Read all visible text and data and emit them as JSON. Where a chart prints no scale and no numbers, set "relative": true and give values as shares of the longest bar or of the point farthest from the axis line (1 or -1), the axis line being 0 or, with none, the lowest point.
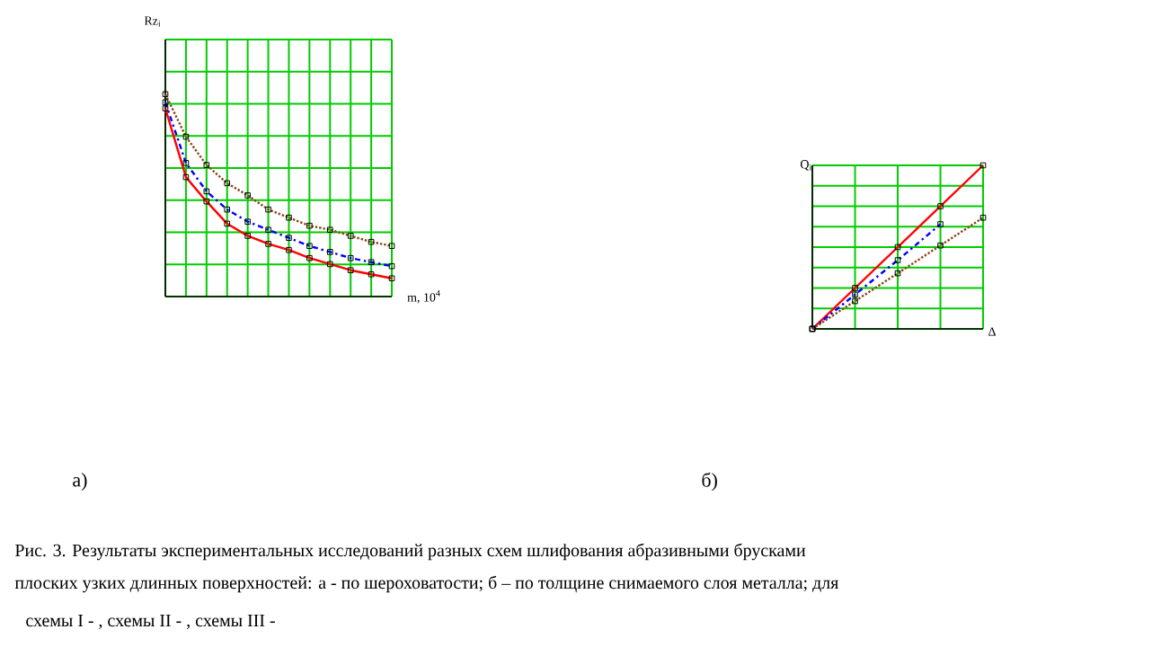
{
  "chart_data": [
    {
      "type": "line",
      "title": "а)",
      "xlabel": "m, 10$^{4}$",
      "ylabel": "Rz$_{i}$",
      "relative": true,
      "grid": true,
      "marker": "square",
      "categories": [
        null,
        null,
        null,
        null,
        null,
        null,
        null,
        null,
        null,
        null,
        null,
        null
      ],
      "series": [
        {
          "color": "#ff0000",
          "line_style": "solid",
          "values": [
            0.93,
            0.59,
            0.47,
            0.36,
            0.3,
            0.26,
            0.23,
            0.19,
            0.16,
            0.13,
            0.11,
            0.09
          ]
        },
        {
          "color": "#0000ff",
          "line_style": "dashed",
          "values": [
            0.96,
            0.66,
            0.52,
            0.43,
            0.37,
            0.33,
            0.29,
            0.25,
            0.22,
            0.19,
            0.17,
            0.15
          ]
        },
        {
          "color": "#8b4513",
          "line_style": "dotted",
          "values": [
            1,
            0.79,
            0.65,
            0.56,
            0.5,
            0.43,
            0.39,
            0.35,
            0.33,
            0.3,
            0.27,
            0.25
          ]
        }
      ],
      "annotations": [
        "Рис. 3. Результаты экспериментальных исследований разных схем шлифования абразивными брусками",
        "плоских узких длинных поверхностей: а - по шероховатости;  б – по толщине снимаемого слоя металла; для",
        "схемы I   -              ,      схемы II  -         ,     схемы III   -"
      ]
    },
    {
      "type": "line",
      "title": "б)",
      "xlabel": "Δ",
      "ylabel": "Q$_{i}$",
      "relative": true,
      "grid": true,
      "marker": "square",
      "categories": [
        null,
        null,
        null,
        null,
        null
      ],
      "series": [
        {
          "color": "#ff0000",
          "line_style": "solid",
          "values": [
            0,
            0.25,
            0.5,
            0.75,
            1
          ]
        },
        {
          "color": "#0000ff",
          "line_style": "dashed",
          "values": [
            0,
            0.21,
            0.42,
            0.64,
            null
          ]
        },
        {
          "color": "#8b4513",
          "line_style": "dotted",
          "values": [
            0,
            0.17,
            0.34,
            0.51,
            0.68
          ]
        }
      ]
    }
  ]
}
